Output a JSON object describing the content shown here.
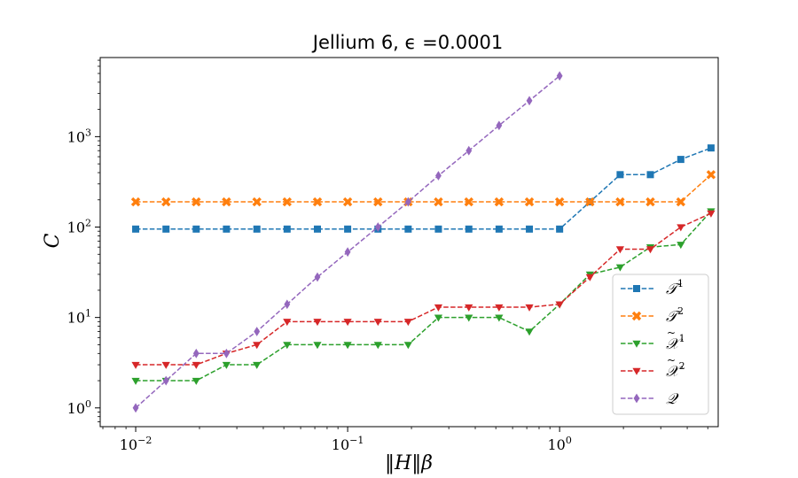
{
  "chart_data": {
    "type": "line",
    "title": "Jellium 6, ϵ =0.0001",
    "xlabel": "‖H‖β",
    "ylabel": "C",
    "x_scale": "log",
    "y_scale": "log",
    "xlim": [
      0.0068,
      5.6
    ],
    "ylim": [
      0.62,
      7500
    ],
    "grid": false,
    "legend_position": "lower right",
    "x_ticks": [
      {
        "value": 0.01,
        "label": "10^-2"
      },
      {
        "value": 0.1,
        "label": "10^-1"
      },
      {
        "value": 1,
        "label": "10^0"
      }
    ],
    "y_ticks": [
      {
        "value": 1,
        "label": "10^0"
      },
      {
        "value": 10,
        "label": "10^1"
      },
      {
        "value": 100,
        "label": "10^2"
      },
      {
        "value": 1000,
        "label": "10^3"
      }
    ],
    "x": [
      0.01,
      0.0139,
      0.0193,
      0.0268,
      0.0373,
      0.0518,
      0.072,
      0.1,
      0.139,
      0.193,
      0.268,
      0.373,
      0.518,
      0.72,
      1.0,
      1.39,
      1.93,
      2.68,
      3.73,
      5.18
    ],
    "series": [
      {
        "name": "T^1",
        "color": "#1f77b4",
        "marker": "square",
        "values": [
          95,
          95,
          95,
          95,
          95,
          95,
          95,
          95,
          95,
          95,
          95,
          95,
          95,
          95,
          95,
          190,
          380,
          380,
          560,
          750
        ]
      },
      {
        "name": "T^2",
        "color": "#ff7f0e",
        "marker": "x-cross",
        "values": [
          190,
          190,
          190,
          190,
          190,
          190,
          190,
          190,
          190,
          190,
          190,
          190,
          190,
          190,
          190,
          190,
          190,
          190,
          190,
          380
        ]
      },
      {
        "name": "X̃^1",
        "color": "#2ca02c",
        "marker": "triangle-down",
        "values": [
          2,
          2,
          2,
          3,
          3,
          5,
          5,
          5,
          5,
          5,
          10,
          10,
          10,
          7,
          14,
          30,
          36,
          60,
          64,
          150
        ]
      },
      {
        "name": "X̃^2",
        "color": "#d62728",
        "marker": "triangle-down",
        "values": [
          3,
          3,
          3,
          4,
          5,
          9,
          9,
          9,
          9,
          9,
          13,
          13,
          13,
          13,
          14,
          28,
          57,
          57,
          100,
          142
        ]
      },
      {
        "name": "Q",
        "color": "#9467bd",
        "marker": "diamond",
        "x": [
          0.01,
          0.0139,
          0.0193,
          0.0268,
          0.0373,
          0.0518,
          0.072,
          0.1,
          0.139,
          0.193,
          0.268,
          0.373,
          0.518,
          0.72,
          1.0
        ],
        "values": [
          1,
          2,
          4,
          4,
          7,
          14,
          28,
          53,
          100,
          190,
          370,
          700,
          1330,
          2500,
          4700
        ]
      }
    ]
  }
}
